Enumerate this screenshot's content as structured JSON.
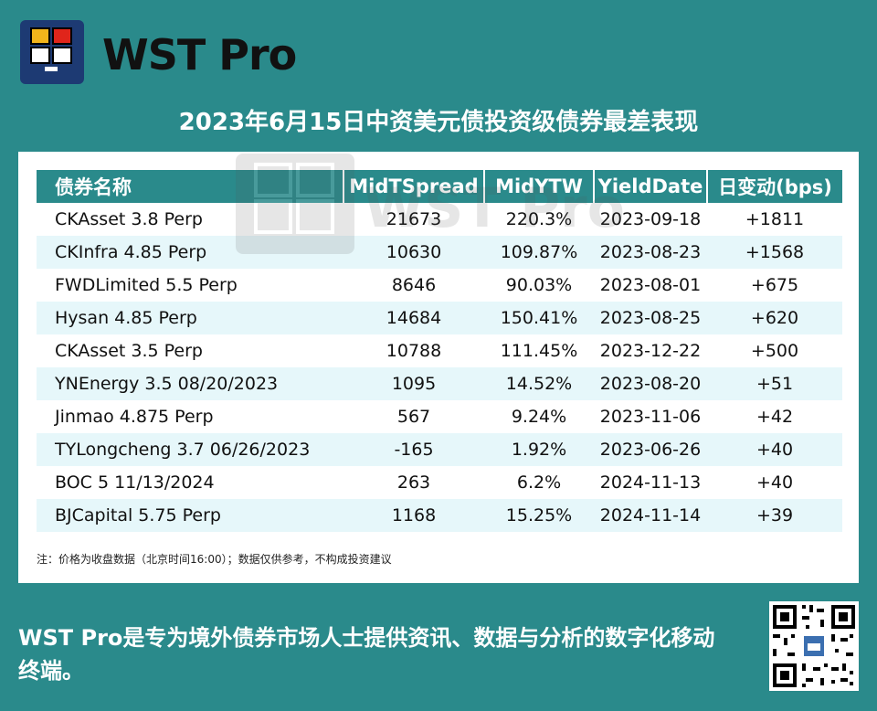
{
  "brand": {
    "name": "WST Pro"
  },
  "headline": "2023年6月15日中资美元债投资级债券最差表现",
  "table": {
    "headers": [
      "债券名称",
      "MidTSpread",
      "MidYTW",
      "YieldDate",
      "日变动(bps)"
    ],
    "rows": [
      [
        "CKAsset 3.8 Perp",
        "21673",
        "220.3%",
        "2023-09-18",
        "+1811"
      ],
      [
        "CKInfra 4.85 Perp",
        "10630",
        "109.87%",
        "2023-08-23",
        "+1568"
      ],
      [
        "FWDLimited 5.5 Perp",
        "8646",
        "90.03%",
        "2023-08-01",
        "+675"
      ],
      [
        "Hysan 4.85 Perp",
        "14684",
        "150.41%",
        "2023-08-25",
        "+620"
      ],
      [
        "CKAsset 3.5 Perp",
        "10788",
        "111.45%",
        "2023-12-22",
        "+500"
      ],
      [
        "YNEnergy 3.5 08/20/2023",
        "1095",
        "14.52%",
        "2023-08-20",
        "+51"
      ],
      [
        "Jinmao 4.875 Perp",
        "567",
        "9.24%",
        "2023-11-06",
        "+42"
      ],
      [
        "TYLongcheng 3.7 06/26/2023",
        "-165",
        "1.92%",
        "2023-06-26",
        "+40"
      ],
      [
        "BOC 5 11/13/2024",
        "263",
        "6.2%",
        "2024-11-13",
        "+40"
      ],
      [
        "BJCapital 5.75 Perp",
        "1168",
        "15.25%",
        "2024-11-14",
        "+39"
      ]
    ]
  },
  "note": "注：价格为收盘数据（北京时间16:00）；数据仅供参考，不构成投资建议",
  "tagline": "WST Pro是专为境外债券市场人士提供资讯、数据与分析的数字化移动终端。",
  "watermark": "WST Pro",
  "colors": {
    "background": "#2a8a8b",
    "header": "#2a8a8b",
    "row_alt": "#e6f7fa",
    "logo_bg": "#1d3a73"
  }
}
